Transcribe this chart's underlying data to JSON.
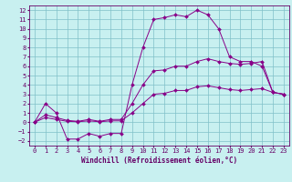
{
  "xlabel": "Windchill (Refroidissement éolien,°C)",
  "bg_color": "#c8f0f0",
  "grid_color": "#80c0c8",
  "line_color": "#880088",
  "xlim": [
    -0.5,
    23.5
  ],
  "ylim": [
    -2.5,
    12.5
  ],
  "xticks": [
    0,
    1,
    2,
    3,
    4,
    5,
    6,
    7,
    8,
    9,
    10,
    11,
    12,
    13,
    14,
    15,
    16,
    17,
    18,
    19,
    20,
    21,
    22,
    23
  ],
  "yticks": [
    -2,
    -1,
    0,
    1,
    2,
    3,
    4,
    5,
    6,
    7,
    8,
    9,
    10,
    11,
    12
  ],
  "line1_x": [
    0,
    1,
    2,
    3,
    4,
    5,
    6,
    7,
    8,
    9,
    10,
    11,
    12,
    13,
    14,
    15,
    16,
    17,
    18,
    19,
    20,
    21,
    22,
    23
  ],
  "line1_y": [
    0.0,
    2.0,
    1.0,
    -1.8,
    -1.8,
    -1.2,
    -1.5,
    -1.2,
    -1.2,
    4.0,
    8.0,
    11.0,
    11.2,
    11.5,
    11.3,
    12.0,
    11.5,
    10.0,
    7.0,
    6.5,
    6.5,
    6.0,
    3.2,
    3.0
  ],
  "line2_x": [
    0,
    1,
    2,
    3,
    4,
    5,
    6,
    7,
    8,
    9,
    10,
    11,
    12,
    13,
    14,
    15,
    16,
    17,
    18,
    19,
    20,
    21,
    22,
    23
  ],
  "line2_y": [
    0.0,
    0.8,
    0.5,
    0.2,
    0.1,
    0.3,
    0.1,
    0.3,
    0.3,
    2.0,
    4.0,
    5.5,
    5.6,
    6.0,
    6.0,
    6.5,
    6.8,
    6.5,
    6.3,
    6.2,
    6.3,
    6.5,
    3.2,
    3.0
  ],
  "line3_x": [
    0,
    1,
    2,
    3,
    4,
    5,
    6,
    7,
    8,
    9,
    10,
    11,
    12,
    13,
    14,
    15,
    16,
    17,
    18,
    19,
    20,
    21,
    22,
    23
  ],
  "line3_y": [
    0.0,
    0.5,
    0.3,
    0.1,
    0.05,
    0.15,
    0.05,
    0.15,
    0.15,
    1.0,
    2.0,
    3.0,
    3.1,
    3.4,
    3.4,
    3.8,
    3.9,
    3.7,
    3.5,
    3.4,
    3.5,
    3.6,
    3.2,
    3.0
  ],
  "tick_fontsize": 5.0,
  "xlabel_fontsize": 5.5,
  "font_color": "#660066",
  "marker_size": 2.0,
  "line_width": 0.7
}
